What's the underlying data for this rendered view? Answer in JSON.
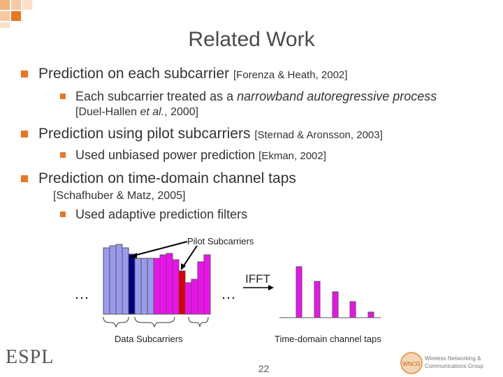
{
  "slide": {
    "title": "Related Work",
    "page_number": "22"
  },
  "bullets": [
    {
      "text": "Prediction on each subcarrier ",
      "ref": "[Forenza & Heath, 2002]"
    },
    {
      "text": "Prediction using pilot subcarriers ",
      "ref": "[Sternad & Aronsson, 2003]"
    },
    {
      "text": "Prediction on time-domain channel taps",
      "ref": "[Schafhuber & Matz, 2005]"
    }
  ],
  "subbullets": [
    {
      "text_a": "Each subcarrier treated as a ",
      "text_b": "narrowband autoregressive process",
      "ref_a": "[Duel-Hallen ",
      "ref_b": "et al.",
      "ref_c": ", 2000]"
    },
    {
      "text": "Used unbiased power prediction ",
      "ref": "[Ekman, 2002]"
    },
    {
      "text": "Used adaptive prediction filters"
    }
  ],
  "diagram": {
    "pilot_label": "Pilot Subcarriers",
    "data_label": "Data Subcarriers",
    "ifft_label": "IFFT",
    "taps_label": "Time-domain channel taps",
    "ellipsis": "…",
    "colors": {
      "data": "#9999ee",
      "pilot_dark": "#000080",
      "pilot_red": "#dd0000",
      "magenta": "#ee11ee",
      "outline": "#555555"
    }
  },
  "logos": {
    "left": "ESPL",
    "right_line1": "Wireless Networking &",
    "right_line2": "Communications Group",
    "right_badge": "WNCG"
  },
  "icons": {
    "bullet": "orange-square-bullet-icon"
  }
}
